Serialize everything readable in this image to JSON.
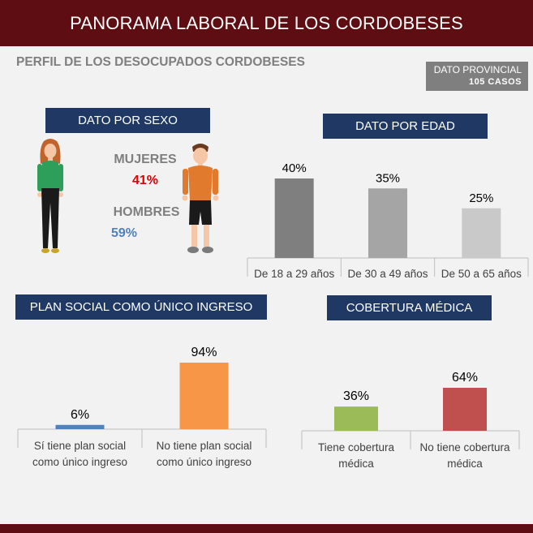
{
  "header": {
    "title": "PANORAMA LABORAL DE LOS CORDOBESES"
  },
  "subtitle": "PERFIL DE LOS DESOCUPADOS CORDOBESES",
  "badge": {
    "line1": "DATO PROVINCIAL",
    "line2": "105 CASOS"
  },
  "sections": {
    "sexo": "DATO POR SEXO",
    "edad": "DATO POR EDAD",
    "plan": "PLAN SOCIAL COMO ÚNICO INGRESO",
    "cobertura": "COBERTURA MÉDICA"
  },
  "gender": {
    "women_label": "MUJERES",
    "women_value": "41%",
    "men_label": "HOMBRES",
    "men_value": "59%",
    "women_color": "#e00000",
    "men_color": "#4f81bd"
  },
  "icons": {
    "woman": "woman-icon",
    "man": "man-icon"
  },
  "colors": {
    "header_bg": "#5e0e12",
    "section_bg": "#1f3864",
    "badge_bg": "#7f7f7f"
  },
  "chart_data": [
    {
      "id": "edad",
      "type": "bar",
      "categories": [
        "De 18 a 29 años",
        "De 30 a 49 años",
        "De 50 a 65 años"
      ],
      "values": [
        40,
        35,
        25
      ],
      "value_labels": [
        "40%",
        "35%",
        "25%"
      ],
      "colors": [
        "#7f7f7f",
        "#a5a5a5",
        "#c9c9c9"
      ],
      "ylim": [
        0,
        40
      ]
    },
    {
      "id": "plan",
      "type": "bar",
      "categories": [
        "Sí tiene plan social como único ingreso",
        "No tiene plan social como único ingreso"
      ],
      "values": [
        6,
        94
      ],
      "value_labels": [
        "6%",
        "94%"
      ],
      "colors": [
        "#4f81bd",
        "#f79646"
      ],
      "ylim": [
        0,
        94
      ]
    },
    {
      "id": "cobertura",
      "type": "bar",
      "categories": [
        "Tiene cobertura médica",
        "No tiene cobertura médica"
      ],
      "values": [
        36,
        64
      ],
      "value_labels": [
        "36%",
        "64%"
      ],
      "colors": [
        "#9bbb59",
        "#c0504d"
      ],
      "ylim": [
        0,
        64
      ]
    }
  ]
}
